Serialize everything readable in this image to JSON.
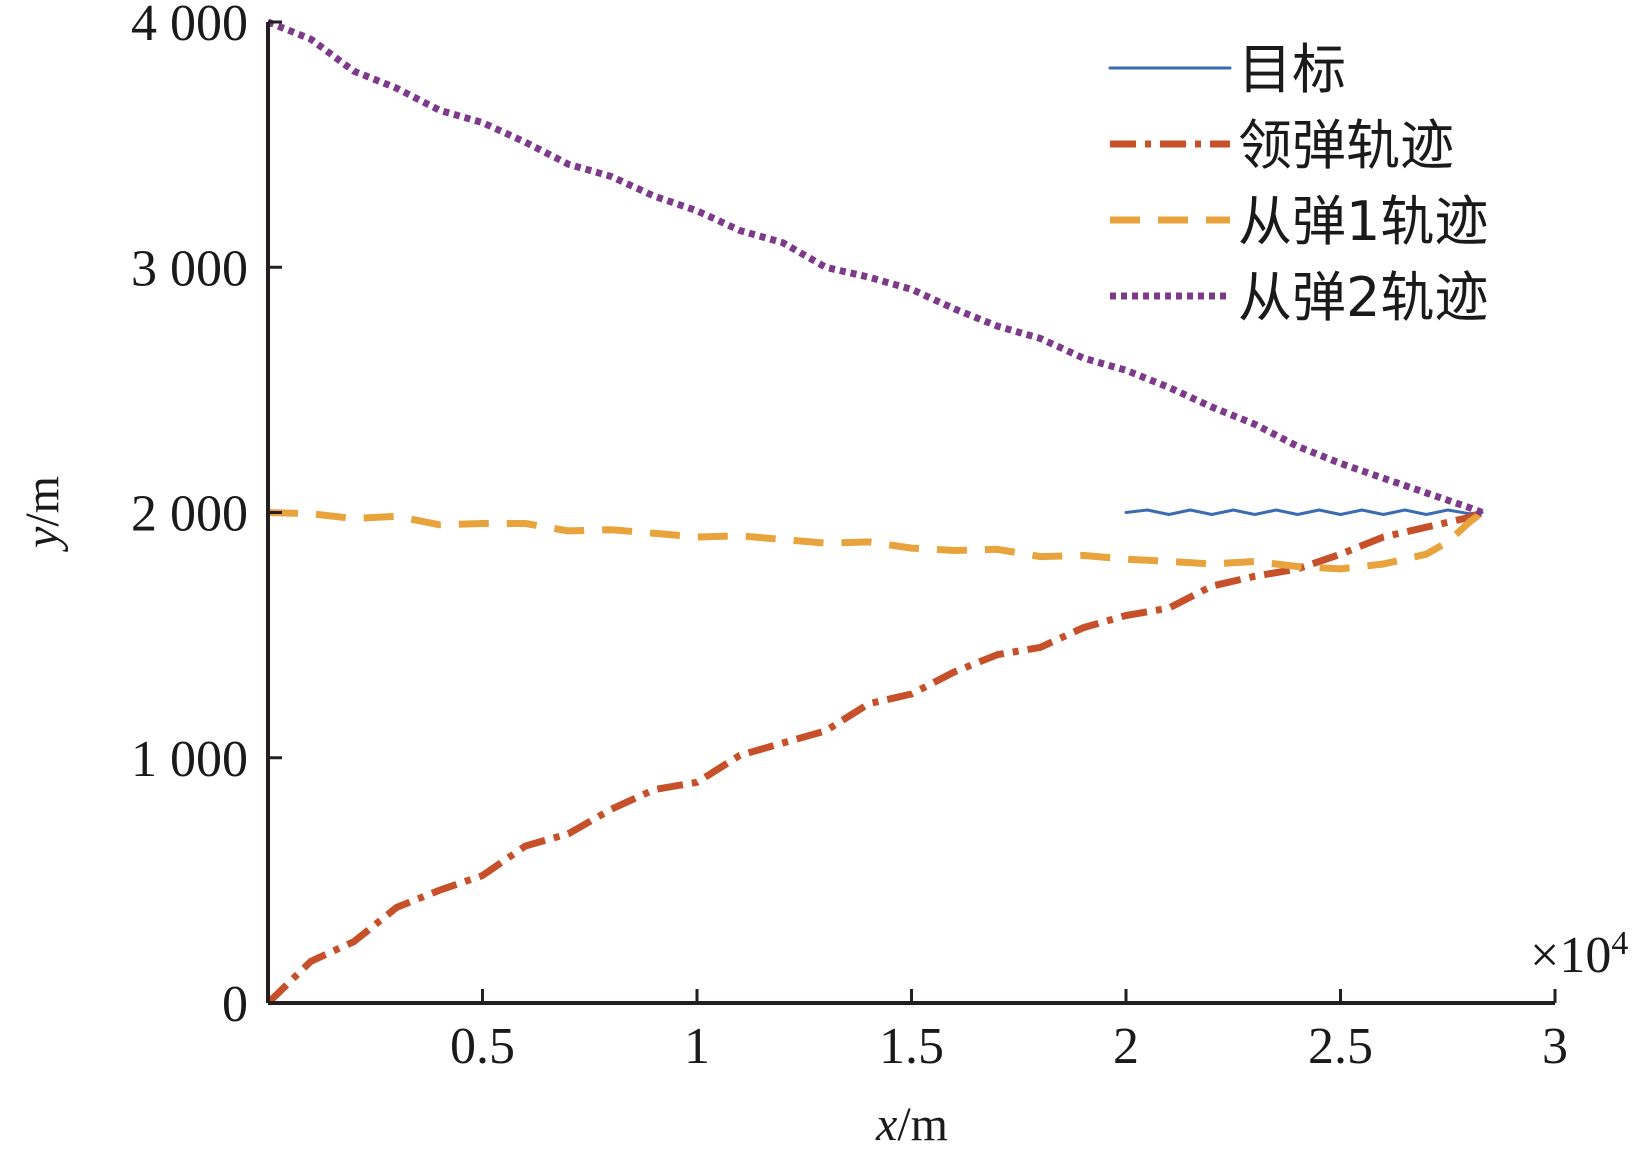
{
  "chart_data": {
    "type": "line",
    "xlabel_var": "x",
    "xlabel_unit": "/m",
    "ylabel_var": "y",
    "ylabel_unit": "/m",
    "x_multiplier": "×10",
    "x_multiplier_exp": "4",
    "xlim": [
      0,
      3
    ],
    "ylim": [
      0,
      4000
    ],
    "x_ticks": [
      0.5,
      1,
      1.5,
      2,
      2.5,
      3
    ],
    "x_tick_labels": [
      "0.5",
      "1",
      "1.5",
      "2",
      "2.5",
      "3"
    ],
    "y_ticks": [
      0,
      1000,
      2000,
      3000,
      4000
    ],
    "y_tick_labels": [
      "0",
      "1 000",
      "2 000",
      "3 000",
      "4 000"
    ],
    "legend_position": "top-right",
    "series": [
      {
        "name": "目标",
        "color": "#3b6bb0",
        "style": "solid",
        "x": [
          2.0,
          2.05,
          2.1,
          2.15,
          2.2,
          2.25,
          2.3,
          2.35,
          2.4,
          2.45,
          2.5,
          2.55,
          2.6,
          2.65,
          2.7,
          2.75,
          2.8,
          2.83
        ],
        "y": [
          2000,
          2010,
          1992,
          2010,
          1992,
          2010,
          1992,
          2010,
          1992,
          2010,
          1992,
          2010,
          1992,
          2010,
          1992,
          2010,
          1995,
          2000
        ]
      },
      {
        "name": "领弹轨迹",
        "color": "#c5502a",
        "style": "dashdot",
        "x": [
          0,
          0.1,
          0.2,
          0.3,
          0.4,
          0.5,
          0.6,
          0.7,
          0.8,
          0.9,
          1.0,
          1.1,
          1.2,
          1.3,
          1.4,
          1.5,
          1.6,
          1.7,
          1.8,
          1.9,
          2.0,
          2.1,
          2.2,
          2.3,
          2.4,
          2.5,
          2.6,
          2.7,
          2.8,
          2.83
        ],
        "y": [
          0,
          170,
          250,
          390,
          460,
          520,
          640,
          690,
          790,
          870,
          900,
          1010,
          1060,
          1110,
          1220,
          1260,
          1350,
          1420,
          1450,
          1530,
          1580,
          1610,
          1700,
          1740,
          1770,
          1830,
          1900,
          1940,
          1980,
          2000
        ]
      },
      {
        "name": "从弹1轨迹",
        "color": "#e8a33c",
        "style": "dashed",
        "x": [
          0,
          0.1,
          0.2,
          0.3,
          0.4,
          0.5,
          0.6,
          0.7,
          0.8,
          0.9,
          1.0,
          1.1,
          1.2,
          1.3,
          1.4,
          1.5,
          1.6,
          1.7,
          1.8,
          1.9,
          2.0,
          2.1,
          2.2,
          2.3,
          2.4,
          2.5,
          2.6,
          2.7,
          2.75,
          2.8,
          2.83
        ],
        "y": [
          2000,
          1995,
          1975,
          1985,
          1950,
          1955,
          1955,
          1925,
          1930,
          1915,
          1900,
          1905,
          1890,
          1875,
          1880,
          1855,
          1845,
          1850,
          1820,
          1825,
          1810,
          1800,
          1790,
          1800,
          1780,
          1770,
          1790,
          1830,
          1880,
          1960,
          2000
        ]
      },
      {
        "name": "从弹2轨迹",
        "color": "#7e3a8a",
        "style": "dotted",
        "x": [
          0,
          0.1,
          0.2,
          0.3,
          0.4,
          0.5,
          0.6,
          0.7,
          0.8,
          0.9,
          1.0,
          1.1,
          1.2,
          1.3,
          1.4,
          1.5,
          1.6,
          1.7,
          1.8,
          1.9,
          2.0,
          2.1,
          2.2,
          2.3,
          2.4,
          2.5,
          2.6,
          2.7,
          2.8,
          2.83
        ],
        "y": [
          4000,
          3930,
          3800,
          3730,
          3640,
          3590,
          3510,
          3420,
          3370,
          3290,
          3230,
          3150,
          3100,
          3000,
          2960,
          2910,
          2830,
          2760,
          2710,
          2630,
          2580,
          2510,
          2430,
          2360,
          2270,
          2200,
          2140,
          2080,
          2020,
          2000
        ]
      }
    ]
  }
}
